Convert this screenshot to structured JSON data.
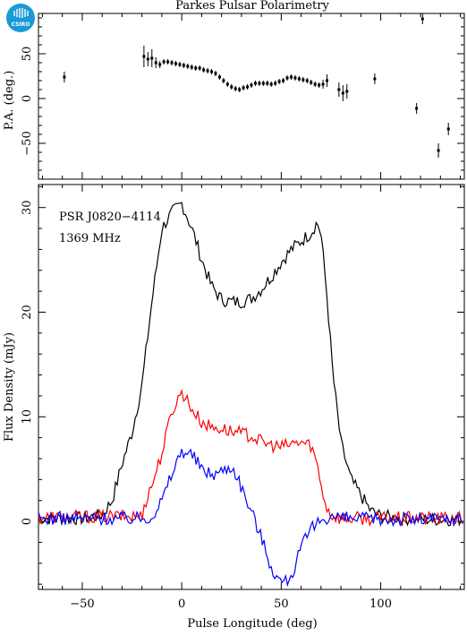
{
  "figure": {
    "title": "Parkes Pulsar Polarimetry",
    "logo_text": "CSIRO",
    "logo_color": "#1a9ad6",
    "source_name": "PSR J0820−4114",
    "frequency": "1369 MHz"
  },
  "chart_data": [
    {
      "type": "scatter",
      "panel": "top",
      "ylabel": "P.A. (deg.)",
      "xlim": [
        -72,
        142
      ],
      "ylim": [
        -90,
        95
      ],
      "xticks": [
        -50,
        0,
        50,
        100
      ],
      "yticks": [
        -50,
        0,
        50
      ],
      "series": [
        {
          "color": "#000000",
          "x": [
            -59,
            -19,
            -17,
            -15,
            -13,
            -11,
            -9,
            -7,
            -5,
            -3,
            -1,
            1,
            3,
            5,
            7,
            9,
            11,
            13,
            15,
            17,
            19,
            21,
            23,
            25,
            27,
            29,
            31,
            33,
            35,
            37,
            39,
            41,
            43,
            45,
            47,
            49,
            51,
            53,
            55,
            57,
            59,
            61,
            63,
            65,
            67,
            69,
            71,
            73,
            79,
            81,
            83,
            97,
            118,
            121,
            129,
            134
          ],
          "y": [
            24,
            47,
            44,
            45,
            40,
            38,
            41,
            41,
            40,
            39,
            38,
            37,
            36,
            35,
            34,
            34,
            32,
            31,
            30,
            28,
            24,
            20,
            16,
            13,
            11,
            10,
            12,
            13,
            15,
            17,
            17,
            17,
            17,
            16,
            17,
            19,
            20,
            23,
            24,
            23,
            22,
            21,
            20,
            18,
            16,
            15,
            16,
            20,
            10,
            6,
            8,
            22,
            -11,
            89,
            -58,
            -34
          ],
          "err": [
            6,
            12,
            8,
            10,
            6,
            4,
            3,
            3,
            3,
            3,
            3,
            3,
            3,
            3,
            3,
            3,
            3,
            3,
            3,
            3,
            3,
            3,
            3,
            3,
            3,
            3,
            3,
            3,
            3,
            3,
            3,
            3,
            3,
            3,
            3,
            3,
            3,
            3,
            3,
            3,
            3,
            3,
            3,
            3,
            3,
            3,
            5,
            7,
            8,
            9,
            8,
            6,
            6,
            6,
            8,
            7
          ]
        }
      ]
    },
    {
      "type": "line",
      "panel": "bottom",
      "xlabel": "Pulse Longitude (deg)",
      "ylabel": "Flux Density (mJy)",
      "xlim": [
        -72,
        142
      ],
      "ylim": [
        -6.5,
        32.2
      ],
      "xticks": [
        -50,
        0,
        50,
        100
      ],
      "yticks": [
        0,
        10,
        20,
        30
      ],
      "series": [
        {
          "color": "#000000",
          "x": [
            -72,
            -50,
            -40,
            -35,
            -30,
            -25,
            -20,
            -15,
            -10,
            -5,
            0,
            3,
            6,
            10,
            15,
            20,
            25,
            30,
            35,
            40,
            45,
            50,
            55,
            60,
            65,
            68,
            70,
            73,
            76,
            80,
            85,
            90,
            95,
            100,
            110,
            125,
            142
          ],
          "y": [
            0.3,
            0.3,
            0.6,
            2.0,
            5.5,
            8.5,
            13.0,
            21.0,
            28.0,
            29.5,
            30.4,
            29.0,
            27.5,
            25.0,
            22.5,
            21.2,
            21.0,
            21.0,
            21.3,
            22.2,
            23.4,
            24.8,
            26.0,
            26.8,
            27.6,
            28.6,
            27.5,
            21.5,
            14.0,
            7.5,
            4.0,
            2.5,
            1.0,
            0.5,
            0.3,
            0.2,
            0.2
          ]
        },
        {
          "color": "#ff0000",
          "x": [
            -72,
            -20,
            -19,
            -15,
            -10,
            -5,
            0,
            3,
            6,
            10,
            15,
            20,
            25,
            30,
            35,
            40,
            45,
            50,
            55,
            60,
            65,
            68,
            70,
            73,
            76,
            80,
            100,
            142
          ],
          "y": [
            0.4,
            0.5,
            1.5,
            3.5,
            6.5,
            10.5,
            12.4,
            11.5,
            10.5,
            9.5,
            9.0,
            8.9,
            8.6,
            8.4,
            8.2,
            7.6,
            7.3,
            7.1,
            7.4,
            7.6,
            7.3,
            5.5,
            3.5,
            1.2,
            0.5,
            0.3,
            0.3,
            0.3
          ]
        },
        {
          "color": "#0000ff",
          "x": [
            -72,
            -20,
            -15,
            -10,
            -5,
            0,
            3,
            6,
            10,
            15,
            20,
            25,
            28,
            32,
            36,
            40,
            44,
            48,
            52,
            56,
            60,
            65,
            70,
            75,
            80,
            100,
            142
          ],
          "y": [
            0.3,
            0.3,
            0.5,
            2.0,
            4.5,
            6.8,
            6.6,
            6.2,
            5.0,
            4.5,
            4.8,
            5.3,
            4.3,
            2.3,
            0.5,
            -1.5,
            -3.8,
            -5.5,
            -5.8,
            -4.8,
            -2.5,
            -0.8,
            0.2,
            0.5,
            0.3,
            0.2,
            0.2
          ]
        }
      ]
    }
  ]
}
